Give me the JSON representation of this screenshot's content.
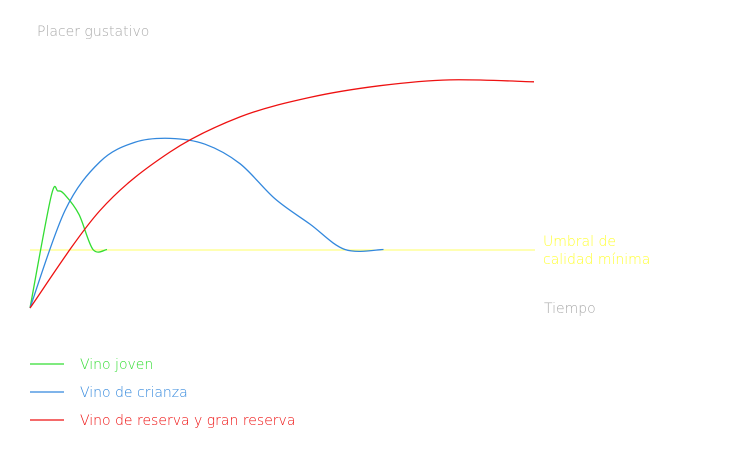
{
  "chart_data": {
    "type": "line",
    "ylabel": "Placer gustativo",
    "xlabel": "Tiempo",
    "threshold": {
      "label_lines": [
        "Umbral de",
        "calidad mínima"
      ],
      "color": "#ffff66"
    },
    "series": [
      {
        "name": "Vino joven",
        "color": "#33dd33",
        "points": [
          [
            0,
            0
          ],
          [
            6,
            57
          ],
          [
            8,
            60
          ],
          [
            10,
            58
          ],
          [
            14,
            48
          ],
          [
            18,
            30
          ],
          [
            22,
            30
          ]
        ]
      },
      {
        "name": "Vino de crianza",
        "color": "#3388dd",
        "points": [
          [
            0,
            0
          ],
          [
            10,
            50
          ],
          [
            20,
            75
          ],
          [
            30,
            85
          ],
          [
            40,
            87
          ],
          [
            50,
            84
          ],
          [
            60,
            74
          ],
          [
            70,
            56
          ],
          [
            80,
            43
          ],
          [
            90,
            30
          ],
          [
            101,
            30
          ]
        ]
      },
      {
        "name": "Vino de reserva y gran reserva",
        "color": "#ee1111",
        "points": [
          [
            0,
            0
          ],
          [
            20,
            50
          ],
          [
            40,
            80
          ],
          [
            60,
            98
          ],
          [
            80,
            108
          ],
          [
            100,
            114
          ],
          [
            120,
            117
          ],
          [
            144,
            116
          ]
        ]
      }
    ],
    "threshold_y": 30,
    "xlim": [
      0,
      144
    ],
    "ylim": [
      0,
      124
    ],
    "grid": false,
    "legend_position": "bottom-left"
  }
}
